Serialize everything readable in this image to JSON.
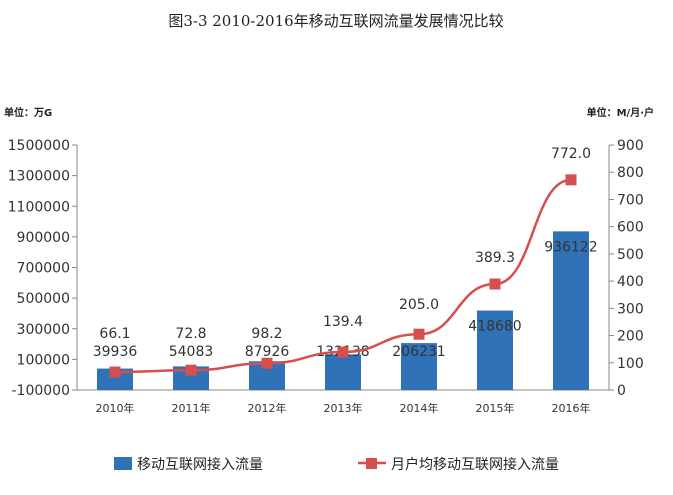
{
  "title": "图3-3 2010-2016年移动互联网流量发展情况比较",
  "left_unit": "单位：万G",
  "right_unit": "单位：M/月·户",
  "chart_data": {
    "type": "bar",
    "categories": [
      "2010年",
      "2011年",
      "2012年",
      "2013年",
      "2014年",
      "2015年",
      "2016年"
    ],
    "series": [
      {
        "name": "移动互联网接入流量",
        "type": "bar",
        "axis": "left",
        "values": [
          39936,
          54083,
          87926,
          132138,
          206231,
          418680,
          936122
        ],
        "color": "#2f72b8"
      },
      {
        "name": "月户均移动互联网接入流量",
        "type": "line",
        "axis": "right",
        "values": [
          66.1,
          72.8,
          98.2,
          139.4,
          205.0,
          389.3,
          772.0
        ],
        "color": "#d64f4f"
      }
    ],
    "left_axis": {
      "ylim": [
        -100000,
        1500000
      ],
      "ticks": [
        "-100000",
        "100000",
        "300000",
        "500000",
        "700000",
        "900000",
        "1100000",
        "1300000",
        "1500000"
      ]
    },
    "right_axis": {
      "ylim": [
        0,
        900
      ],
      "ticks": [
        "0",
        "100",
        "200",
        "300",
        "400",
        "500",
        "600",
        "700",
        "800",
        "900"
      ]
    },
    "legend_position": "bottom",
    "grid": false
  }
}
